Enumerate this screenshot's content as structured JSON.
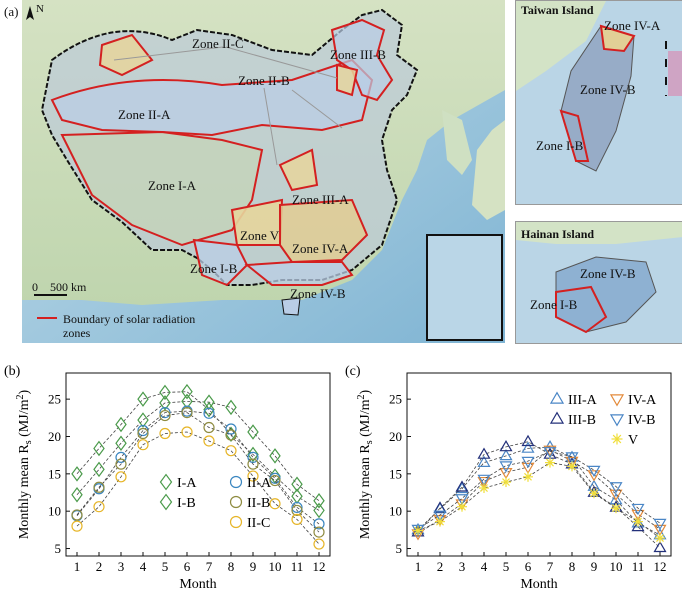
{
  "map": {
    "panel_label": "(a)",
    "north": "N",
    "scale": "0    500 km",
    "legend": "Boundary of solar radiation zones",
    "zones": [
      "Zone II-C",
      "Zone III-B",
      "Zone II-B",
      "Zone II-A",
      "Zone I-A",
      "Zone III-A",
      "Zone V",
      "Zone IV-A",
      "Zone I-B",
      "Zone IV-B"
    ],
    "taiwan": {
      "title": "Taiwan Island",
      "zones": [
        "Zone IV-A",
        "Zone IV-B",
        "Zone I-B"
      ]
    },
    "hainan": {
      "title": "Hainan Island",
      "zones": [
        "Zone IV-B",
        "Zone I-B"
      ]
    },
    "colors": {
      "water": "#a9cfe3",
      "land": "#cfe0c2",
      "boundary": "#d42020",
      "zone_fill": "#b9cde6",
      "desert": "#e6d59c"
    }
  },
  "chart_data": [
    {
      "panel_label": "(b)",
      "type": "scatter",
      "xlabel": "Month",
      "ylabel": "Monthly mean R",
      "ylabel_sub": "s",
      "ylabel_unit": " (MJ/m",
      "ylabel_sup": "2",
      "ylabel_end": ")",
      "x": [
        1,
        2,
        3,
        4,
        5,
        6,
        7,
        8,
        9,
        10,
        11,
        12
      ],
      "xlim": [
        0.5,
        12.5
      ],
      "ylim": [
        4,
        28.5
      ],
      "yticks": [
        5,
        10,
        15,
        20,
        25
      ],
      "legend_position": "bottom-right",
      "series": [
        {
          "name": "I-A",
          "marker": "diamond",
          "color": "#4a9a4a",
          "values": [
            12.2,
            15.6,
            19.1,
            22.2,
            24.5,
            24.7,
            24.6,
            23.9,
            20.6,
            17.4,
            13.6,
            11.4
          ]
        },
        {
          "name": "I-B",
          "marker": "diamond",
          "color": "#4a9a4a",
          "values": [
            15.0,
            18.4,
            21.6,
            25.0,
            25.9,
            26.0,
            23.6,
            20.3,
            17.6,
            14.7,
            12.0,
            10.1
          ]
        },
        {
          "name": "II-A",
          "marker": "circle",
          "color": "#3a86c0",
          "values": [
            9.4,
            13.0,
            17.2,
            20.8,
            23.2,
            23.4,
            23.1,
            21.0,
            17.2,
            14.4,
            10.5,
            8.3
          ]
        },
        {
          "name": "II-B",
          "marker": "circle",
          "color": "#8e8b40",
          "values": [
            9.5,
            13.2,
            16.3,
            20.4,
            22.8,
            23.2,
            21.2,
            20.2,
            16.3,
            14.1,
            10.1,
            7.2
          ]
        },
        {
          "name": "II-C",
          "marker": "circle",
          "color": "#e6b528",
          "values": [
            8.0,
            10.6,
            14.6,
            18.9,
            20.4,
            20.6,
            19.4,
            18.1,
            14.7,
            11.0,
            8.9,
            5.6
          ]
        }
      ]
    },
    {
      "panel_label": "(c)",
      "type": "scatter",
      "xlabel": "Month",
      "ylabel": "Monthly mean R",
      "ylabel_sub": "s",
      "ylabel_unit": " (MJ/m",
      "ylabel_sup": "2",
      "ylabel_end": ")",
      "x": [
        1,
        2,
        3,
        4,
        5,
        6,
        7,
        8,
        9,
        10,
        11,
        12
      ],
      "xlim": [
        0.5,
        12.5
      ],
      "ylim": [
        4,
        28.5
      ],
      "yticks": [
        5,
        10,
        15,
        20,
        25
      ],
      "legend_position": "top-right",
      "series": [
        {
          "name": "III-A",
          "marker": "triangle-up",
          "color": "#4a86c6",
          "values": [
            7.5,
            10.3,
            13.0,
            16.5,
            17.4,
            18.4,
            18.6,
            17.2,
            13.3,
            11.5,
            8.4,
            6.8
          ]
        },
        {
          "name": "III-B",
          "marker": "triangle-up",
          "color": "#23307a",
          "values": [
            7.2,
            10.4,
            13.2,
            17.6,
            18.6,
            19.3,
            17.6,
            16.3,
            12.5,
            10.5,
            7.9,
            5.1
          ]
        },
        {
          "name": "IV-A",
          "marker": "triangle-down",
          "color": "#e38a3a",
          "values": [
            7.0,
            8.9,
            11.0,
            14.0,
            15.2,
            15.9,
            18.2,
            16.7,
            14.9,
            12.3,
            9.6,
            7.6
          ]
        },
        {
          "name": "IV-B",
          "marker": "triangle-down",
          "color": "#4a86c6",
          "values": [
            7.6,
            9.5,
            11.7,
            14.3,
            16.1,
            16.7,
            18.0,
            17.3,
            15.5,
            13.3,
            10.4,
            8.4
          ]
        },
        {
          "name": "V",
          "marker": "asterisk",
          "color": "#f0de3a",
          "values": [
            7.4,
            8.6,
            10.6,
            13.1,
            13.9,
            14.6,
            16.5,
            16.0,
            12.4,
            10.4,
            8.6,
            6.4
          ]
        }
      ]
    }
  ]
}
